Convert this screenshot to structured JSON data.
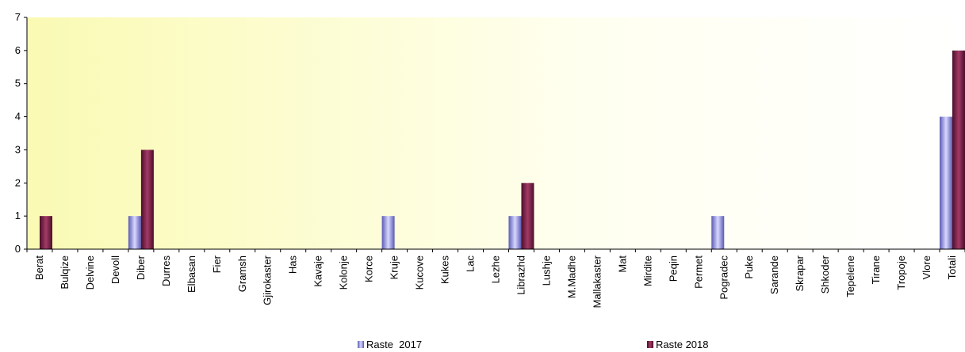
{
  "chart_data": {
    "type": "bar",
    "title": "",
    "xlabel": "",
    "ylabel": "",
    "ylim": [
      0,
      7
    ],
    "yticks": [
      0,
      1,
      2,
      3,
      4,
      5,
      6,
      7
    ],
    "grid": false,
    "legend_position": "bottom",
    "background": "yellow-to-white horizontal gradient",
    "categories": [
      "Berat",
      "Bulqize",
      "Delvine",
      "Devoll",
      "Diber",
      "Durres",
      "Elbasan",
      "Fier",
      "Gramsh",
      "Gjirokaster",
      "Has",
      "Kavaje",
      "Kolonje",
      "Korce",
      "Kruje",
      "Kucove",
      "Kukes",
      "Lac",
      "Lezhe",
      "Librazhd",
      "Lushje",
      "M.Madhe",
      "Mallakaster",
      "Mat",
      "Mirdite",
      "Peqin",
      "Permet",
      "Pogradec",
      "Puke",
      "Sarande",
      "Skrapar",
      "Shkoder",
      "Tepelene",
      "Tirane",
      "Tropoje",
      "Vlore",
      "Totali"
    ],
    "series": [
      {
        "name": "Raste  2017",
        "color": "#8c8ce0",
        "values": [
          0,
          0,
          0,
          0,
          1,
          0,
          0,
          0,
          0,
          0,
          0,
          0,
          0,
          0,
          1,
          0,
          0,
          0,
          0,
          1,
          0,
          0,
          0,
          0,
          0,
          0,
          0,
          1,
          0,
          0,
          0,
          0,
          0,
          0,
          0,
          0,
          4
        ]
      },
      {
        "name": "Raste 2018",
        "color": "#7a1f45",
        "values": [
          1,
          0,
          0,
          0,
          3,
          0,
          0,
          0,
          0,
          0,
          0,
          0,
          0,
          0,
          0,
          0,
          0,
          0,
          0,
          2,
          0,
          0,
          0,
          0,
          0,
          0,
          0,
          0,
          0,
          0,
          0,
          0,
          0,
          0,
          0,
          0,
          6
        ]
      }
    ]
  }
}
